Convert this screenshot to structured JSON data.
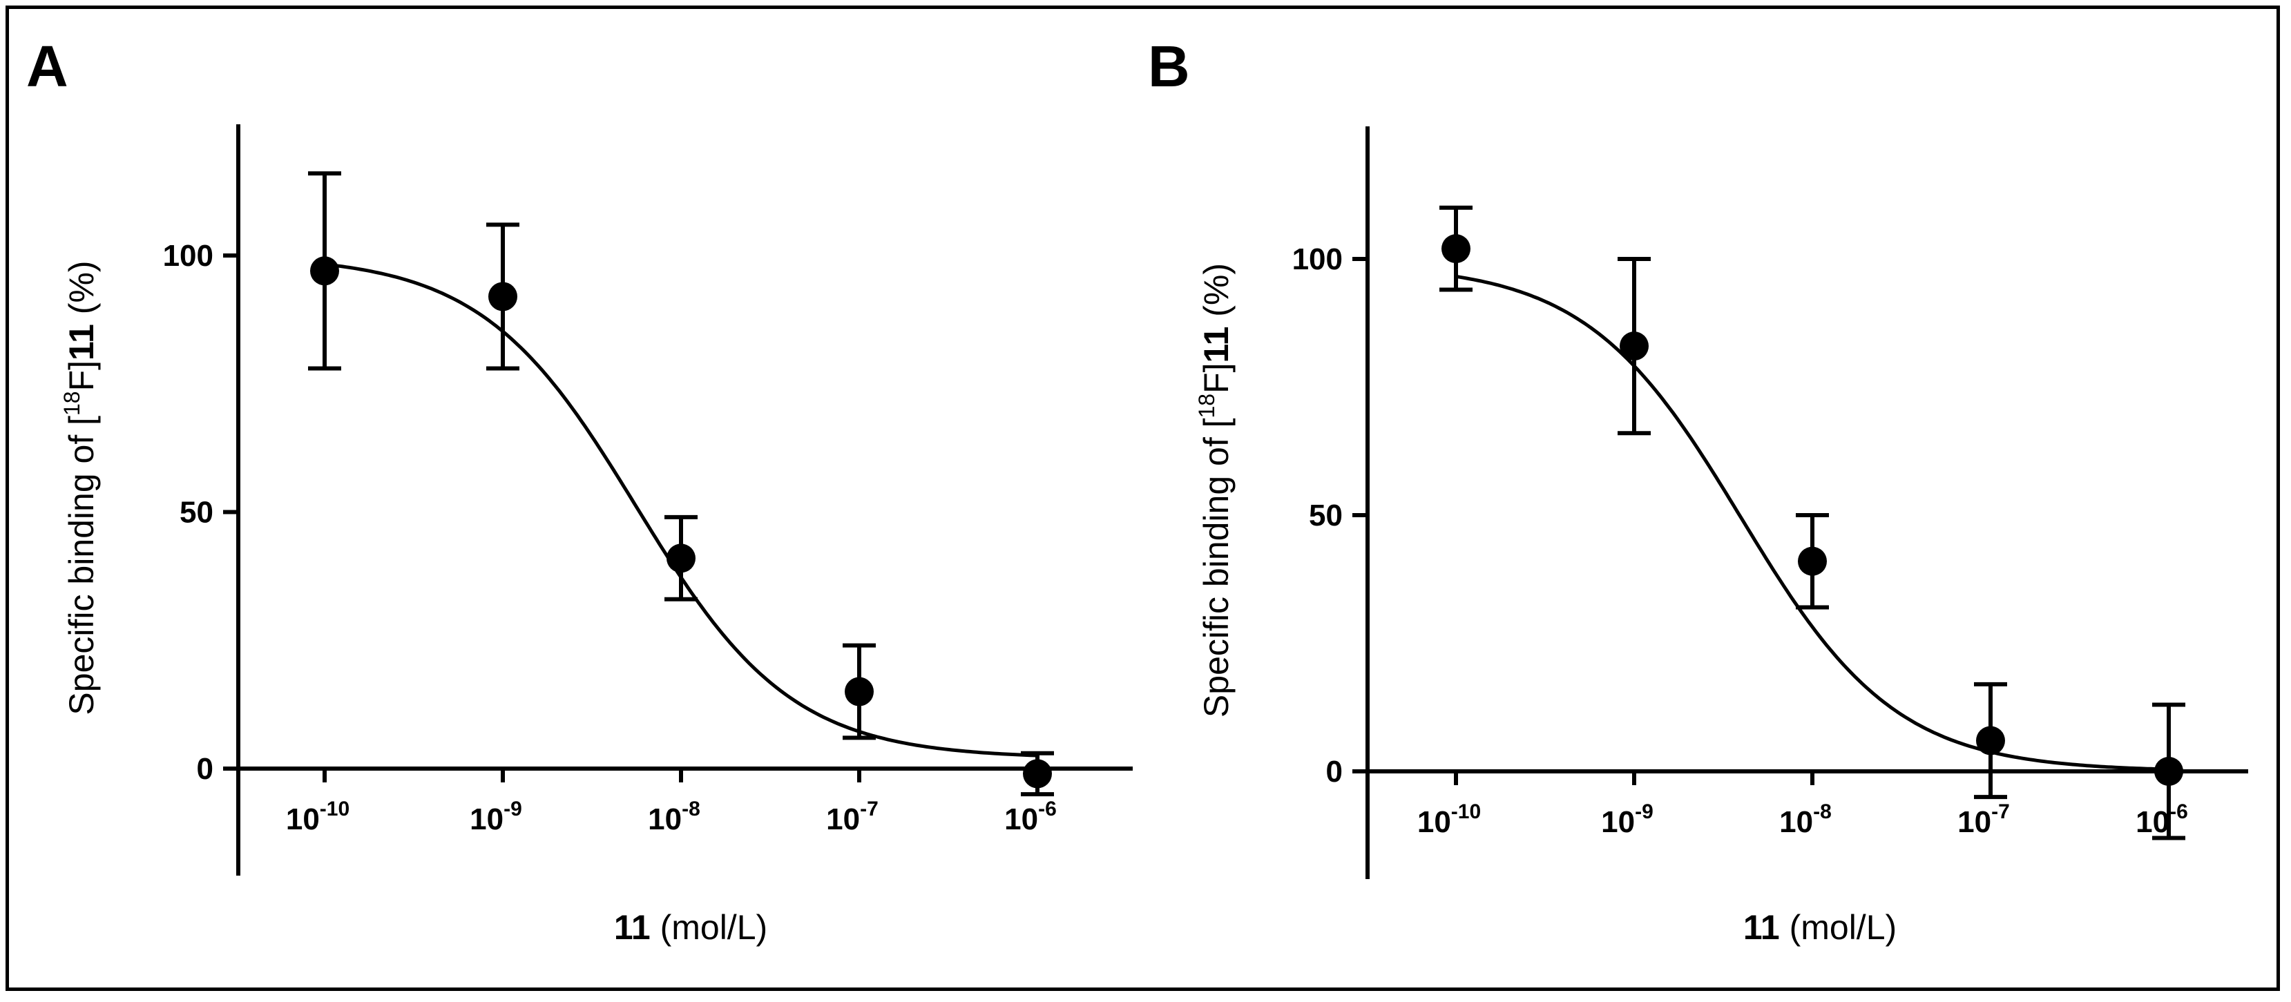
{
  "chart_data": [
    {
      "panel": "A",
      "type": "scatter",
      "xscale": "log",
      "x": [
        1e-10,
        1e-09,
        1e-08,
        1e-07,
        1e-06
      ],
      "x_tick_labels": [
        {
          "base": "10",
          "exp": "-10"
        },
        {
          "base": "10",
          "exp": "-9"
        },
        {
          "base": "10",
          "exp": "-8"
        },
        {
          "base": "10",
          "exp": "-7"
        },
        {
          "base": "10",
          "exp": "-6"
        }
      ],
      "y": [
        97,
        92,
        41,
        15,
        -1
      ],
      "y_error": [
        19,
        14,
        8,
        9,
        4
      ],
      "y_ticks": [
        "0",
        "50",
        "100"
      ],
      "ylim": [
        -20,
        125
      ],
      "fit_curve": {
        "type": "sigmoidal dose-response",
        "top": 100,
        "bottom": 2,
        "logIC50": -8.25,
        "hill": 1
      },
      "xlabel_bold": "11",
      "xlabel_rest": " (mol/L)",
      "ylabel_prefix": "Specific binding of [",
      "ylabel_sup": "18",
      "ylabel_mid": "F]",
      "ylabel_bold": "11",
      "ylabel_suffix": " (%)"
    },
    {
      "panel": "B",
      "type": "scatter",
      "xscale": "log",
      "x": [
        1e-10,
        1e-09,
        1e-08,
        1e-07,
        1e-06
      ],
      "x_tick_labels": [
        {
          "base": "10",
          "exp": "-10"
        },
        {
          "base": "10",
          "exp": "-9"
        },
        {
          "base": "10",
          "exp": "-8"
        },
        {
          "base": "10",
          "exp": "-7"
        },
        {
          "base": "10",
          "exp": "-6"
        }
      ],
      "y": [
        102,
        83,
        41,
        6,
        0
      ],
      "y_error": [
        8,
        17,
        9,
        11,
        13
      ],
      "y_ticks": [
        "0",
        "50",
        "100"
      ],
      "ylim": [
        -20,
        125
      ],
      "fit_curve": {
        "type": "sigmoidal dose-response",
        "top": 99,
        "bottom": 0,
        "logIC50": -8.4,
        "hill": 1
      },
      "xlabel_bold": "11",
      "xlabel_rest": " (mol/L)",
      "ylabel_prefix": "Specific binding of [",
      "ylabel_sup": "18",
      "ylabel_mid": "F]",
      "ylabel_bold": "11",
      "ylabel_suffix": " (%)"
    }
  ]
}
